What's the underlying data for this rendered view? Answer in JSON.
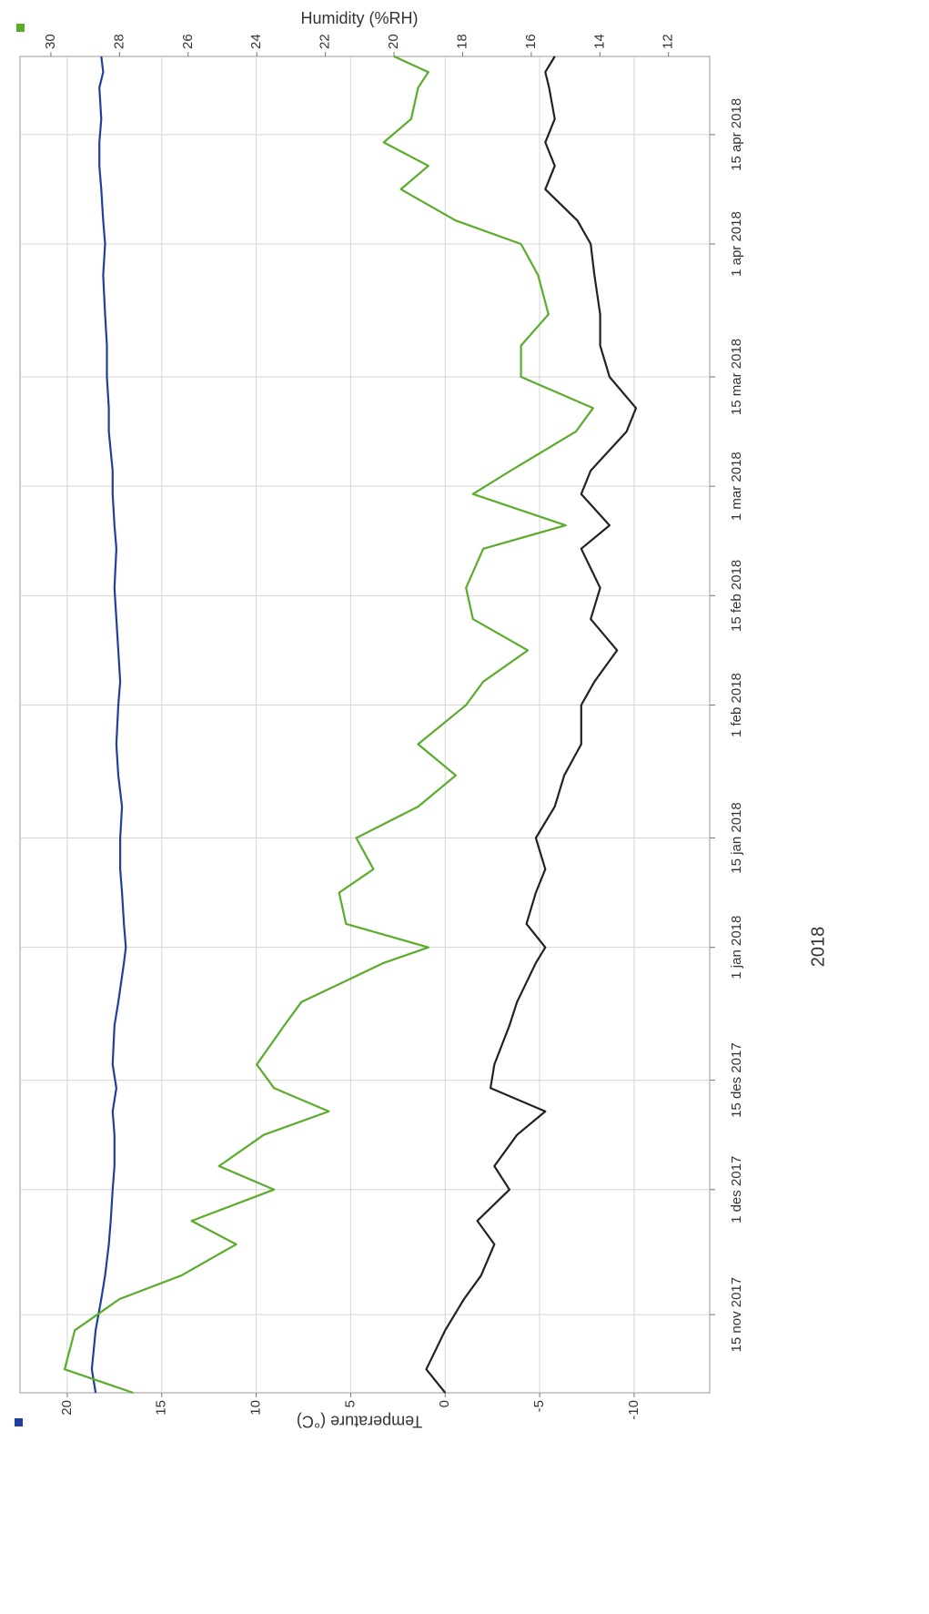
{
  "chart_data": {
    "type": "line",
    "x_label": "2018",
    "y_label": "Temperature (°C)",
    "y2_label": "Humidity (%RH)",
    "x": [
      "2017-11-05",
      "2017-11-08",
      "2017-11-13",
      "2017-11-17",
      "2017-11-20",
      "2017-11-24",
      "2017-11-27",
      "2017-12-01",
      "2017-12-04",
      "2017-12-08",
      "2017-12-11",
      "2017-12-14",
      "2017-12-17",
      "2017-12-22",
      "2017-12-25",
      "2017-12-30",
      "2018-01-01",
      "2018-01-04",
      "2018-01-08",
      "2018-01-11",
      "2018-01-15",
      "2018-01-19",
      "2018-01-23",
      "2018-01-27",
      "2018-02-01",
      "2018-02-04",
      "2018-02-08",
      "2018-02-12",
      "2018-02-16",
      "2018-02-21",
      "2018-02-24",
      "2018-02-28",
      "2018-03-03",
      "2018-03-08",
      "2018-03-11",
      "2018-03-15",
      "2018-03-19",
      "2018-03-23",
      "2018-03-28",
      "2018-04-01",
      "2018-04-04",
      "2018-04-08",
      "2018-04-11",
      "2018-04-14",
      "2018-04-17",
      "2018-04-21",
      "2018-04-23",
      "2018-04-25"
    ],
    "series": [
      {
        "color": "#1f3f9e",
        "values": [
          18.5,
          18.7,
          18.5,
          18.2,
          18.0,
          17.8,
          17.7,
          17.6,
          17.5,
          17.5,
          17.6,
          17.4,
          17.6,
          17.5,
          17.3,
          17.0,
          16.9,
          17.0,
          17.1,
          17.2,
          17.2,
          17.1,
          17.3,
          17.4,
          17.3,
          17.2,
          17.3,
          17.4,
          17.5,
          17.4,
          17.5,
          17.6,
          17.6,
          17.8,
          17.8,
          17.9,
          17.9,
          18.0,
          18.1,
          18.0,
          18.1,
          18.2,
          18.3,
          18.3,
          18.2,
          18.3,
          18.1,
          18.2
        ]
      },
      {
        "color": "#5aac2b",
        "axis": "y2",
        "values": [
          27.6,
          29.6,
          29.3,
          28.0,
          26.2,
          24.6,
          25.9,
          23.5,
          25.1,
          23.8,
          21.9,
          23.5,
          24.0,
          23.2,
          22.7,
          20.3,
          19.0,
          21.4,
          21.6,
          20.6,
          21.1,
          19.3,
          18.2,
          19.3,
          17.9,
          17.4,
          16.1,
          17.7,
          17.9,
          17.4,
          15.0,
          17.7,
          16.6,
          14.7,
          14.2,
          16.3,
          16.3,
          15.5,
          15.8,
          16.3,
          18.2,
          19.8,
          19.0,
          20.3,
          19.5,
          19.3,
          19.0,
          20.0
        ]
      },
      {
        "color": "#222222",
        "values": [
          0,
          1,
          0,
          -1,
          -1.9,
          -2.6,
          -1.7,
          -3.4,
          -2.6,
          -3.8,
          -5.3,
          -2.4,
          -2.6,
          -3.4,
          -3.8,
          -4.8,
          -5.3,
          -4.3,
          -4.8,
          -5.3,
          -4.8,
          -5.8,
          -6.3,
          -7.2,
          -7.2,
          -7.9,
          -9.1,
          -7.7,
          -8.2,
          -7.2,
          -8.7,
          -7.2,
          -7.7,
          -9.6,
          -10.1,
          -8.7,
          -8.2,
          -8.2,
          -7.9,
          -7.7,
          -7.0,
          -5.3,
          -5.8,
          -5.3,
          -5.8,
          -5.5,
          -5.3,
          -5.8
        ]
      }
    ],
    "xlim": [
      "2017-11-05",
      "2018-04-25"
    ],
    "xticks": [
      {
        "value": "2017-11-15",
        "label": "15 nov 2017"
      },
      {
        "value": "2017-12-01",
        "label": "1 des 2017"
      },
      {
        "value": "2017-12-15",
        "label": "15 des 2017"
      },
      {
        "value": "2018-01-01",
        "label": "1 jan 2018"
      },
      {
        "value": "2018-01-15",
        "label": "15 jan 2018"
      },
      {
        "value": "2018-02-01",
        "label": "1 feb 2018"
      },
      {
        "value": "2018-02-15",
        "label": "15 feb 2018"
      },
      {
        "value": "2018-03-01",
        "label": "1 mar 2018"
      },
      {
        "value": "2018-03-15",
        "label": "15 mar 2018"
      },
      {
        "value": "2018-04-01",
        "label": "1 apr 2018"
      },
      {
        "value": "2018-04-15",
        "label": "15 apr 2018"
      }
    ],
    "ylim": [
      -14,
      22.5
    ],
    "yticks": [
      -10,
      -5,
      0,
      5,
      10,
      15,
      20
    ],
    "y2lim": [
      10.8,
      30.9
    ],
    "y2ticks": [
      12,
      14,
      16,
      18,
      20,
      22,
      24,
      26,
      28,
      30
    ],
    "grid": true
  }
}
